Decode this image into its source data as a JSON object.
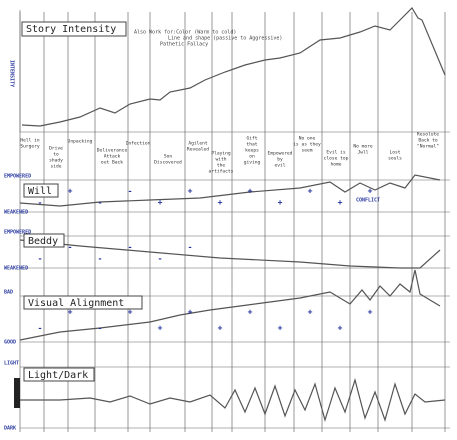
{
  "header": {
    "title": "Story Intensity",
    "notes": [
      "Also Work for:Color (Warm to cold)",
      "Line and shape (passive to Aggressive)",
      "Pathetic Fallacy"
    ],
    "axis_label": "INTENSITY"
  },
  "beats": [
    {
      "lines": [
        "Hell in",
        "Surgery"
      ]
    },
    {
      "lines": [
        "Drive",
        "to",
        "shady",
        "side"
      ]
    },
    {
      "lines": [
        "Unpacking"
      ]
    },
    {
      "lines": [
        "Deliverance",
        "Attack",
        "out Back"
      ]
    },
    {
      "lines": [
        "Infection"
      ]
    },
    {
      "lines": [
        "Son",
        "Discovered"
      ]
    },
    {
      "lines": [
        "Agilent",
        "Revealed"
      ]
    },
    {
      "lines": [
        "Playing",
        "with",
        "the",
        "artifacts"
      ]
    },
    {
      "lines": [
        "Gift",
        "that",
        "keeps",
        "on",
        "giving"
      ]
    },
    {
      "lines": [
        "Empowered",
        "by",
        "evil"
      ]
    },
    {
      "lines": [
        "No one",
        "is as they",
        "seem"
      ]
    },
    {
      "lines": [
        "Evil is",
        "close top",
        "home"
      ]
    },
    {
      "lines": [
        "No more",
        "Jwll"
      ]
    },
    {
      "lines": [
        "Lost",
        "souls"
      ]
    },
    {
      "lines": [
        "Resolute",
        "Back to",
        "\"Normal\""
      ]
    }
  ],
  "sections": [
    {
      "title": "Will",
      "top": "EMPOWERED",
      "bottom": "WEAKENED",
      "note": "CONFLICT",
      "signs": [
        "-",
        "+",
        "-",
        "-",
        "+",
        "+",
        "+",
        "+",
        "+",
        "+",
        "+",
        "+"
      ]
    },
    {
      "title": "Beddy",
      "top": "EMPOWERED",
      "bottom": "WEAKENED",
      "signs": [
        "-",
        "-",
        "-",
        "-",
        "-",
        "-"
      ]
    },
    {
      "title": "Visual Alignment",
      "top": "BAD",
      "bottom": "GOOD",
      "signs": [
        "-",
        "+",
        "-",
        "+",
        "+",
        "+",
        "+",
        "+",
        "+",
        "+",
        "+",
        "+"
      ]
    },
    {
      "title": "Light/Dark",
      "top": "LIGHT",
      "bottom": "DARK",
      "signs": []
    }
  ]
}
